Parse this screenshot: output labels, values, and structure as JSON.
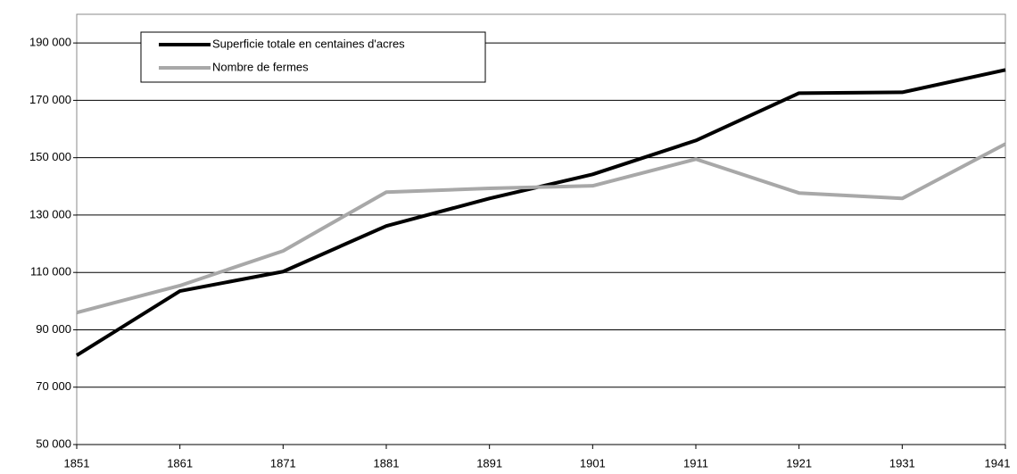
{
  "chart_data": {
    "type": "line",
    "x": [
      1851,
      1861,
      1871,
      1881,
      1891,
      1901,
      1911,
      1921,
      1931,
      1941
    ],
    "series": [
      {
        "name": "Superficie totale en centaines d'acres",
        "color": "#000000",
        "values": [
          81100,
          103500,
          110300,
          126200,
          135800,
          144200,
          156000,
          172500,
          172800,
          180600
        ]
      },
      {
        "name": "Nombre de fermes",
        "color": "#a8a8a8",
        "values": [
          96000,
          105400,
          117500,
          138000,
          139300,
          140200,
          149500,
          137700,
          135800,
          154800
        ]
      }
    ],
    "xlim": [
      1851,
      1941
    ],
    "xticks": [
      1851,
      1861,
      1871,
      1881,
      1891,
      1901,
      1911,
      1921,
      1931,
      1941
    ],
    "ylim": [
      50000,
      200000
    ],
    "yticks": [
      {
        "value": 50000,
        "label": "50 000"
      },
      {
        "value": 70000,
        "label": "70 000"
      },
      {
        "value": 90000,
        "label": "90 000"
      },
      {
        "value": 110000,
        "label": "110 000"
      },
      {
        "value": 130000,
        "label": "130 000"
      },
      {
        "value": 150000,
        "label": "150 000"
      },
      {
        "value": 170000,
        "label": "170 000"
      },
      {
        "value": 190000,
        "label": "190 000"
      }
    ],
    "grid": true,
    "legend": "top-left"
  }
}
